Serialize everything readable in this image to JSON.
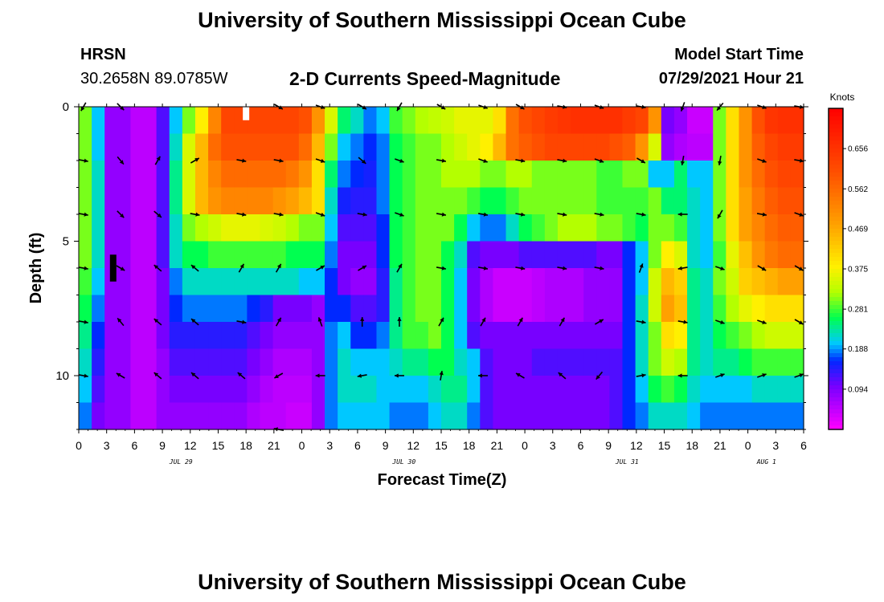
{
  "page": {
    "title_top": "University of Southern Mississippi Ocean Cube",
    "title_bottom": "University of Southern Mississippi Ocean Cube",
    "station": "HRSN",
    "coords": "30.2658N  89.0785W",
    "plot_title": "2-D Currents Speed-Magnitude",
    "model_start_label": "Model Start Time",
    "model_start_value": "07/29/2021 Hour 21"
  },
  "chart_data": {
    "type": "heatmap",
    "title": "2-D Currents Speed-Magnitude",
    "xlabel": "Forecast Time(Z)",
    "ylabel": "Depth (ft)",
    "ylim": [
      0,
      12
    ],
    "xlim_hours": [
      0,
      78
    ],
    "x_tick_labels": [
      "0",
      "3",
      "6",
      "9",
      "12",
      "15",
      "18",
      "21",
      "0",
      "3",
      "6",
      "9",
      "12",
      "15",
      "18",
      "21",
      "0",
      "3",
      "6",
      "9",
      "12",
      "15",
      "18",
      "21",
      "0",
      "3",
      "6"
    ],
    "y_ticks": [
      0,
      5,
      10
    ],
    "date_labels": [
      {
        "label": "JUL 29",
        "hour": 11
      },
      {
        "label": "JUL 30",
        "hour": 35
      },
      {
        "label": "JUL 31",
        "hour": 59
      },
      {
        "label": "AUG 1",
        "hour": 74
      }
    ],
    "colorbar": {
      "unit": "Knots",
      "min": 0.0,
      "max": 0.75,
      "tick_labels": [
        "0.656",
        "0.562",
        "0.469",
        "0.375",
        "0.281",
        "0.188",
        "0.094"
      ],
      "tick_values": [
        0.656,
        0.562,
        0.469,
        0.375,
        0.281,
        0.188,
        0.094
      ]
    },
    "rows_depth_ft": [
      0,
      1,
      2,
      3,
      4,
      5,
      6,
      7,
      8,
      9,
      10,
      11
    ],
    "row_speeds_knots": [
      [
        0.3,
        0.2,
        0.08,
        0.08,
        0.05,
        0.05,
        0.12,
        0.2,
        0.3,
        0.38,
        0.52,
        0.62,
        0.62,
        0.62,
        0.62,
        0.62,
        0.62,
        0.6,
        0.5,
        0.35,
        0.25,
        0.22,
        0.18,
        0.2,
        0.28,
        0.3,
        0.32,
        0.33,
        0.34,
        0.36,
        0.36,
        0.36,
        0.4,
        0.55,
        0.6,
        0.62,
        0.64,
        0.65,
        0.66,
        0.66,
        0.66,
        0.66,
        0.64,
        0.62,
        0.5,
        0.1,
        0.08,
        0.04,
        0.04,
        0.3,
        0.4,
        0.5,
        0.6,
        0.65,
        0.66,
        0.66
      ],
      [
        0.3,
        0.2,
        0.08,
        0.08,
        0.05,
        0.05,
        0.12,
        0.22,
        0.35,
        0.45,
        0.56,
        0.6,
        0.6,
        0.6,
        0.6,
        0.6,
        0.6,
        0.56,
        0.45,
        0.3,
        0.2,
        0.18,
        0.16,
        0.18,
        0.26,
        0.28,
        0.3,
        0.3,
        0.32,
        0.34,
        0.36,
        0.38,
        0.45,
        0.55,
        0.58,
        0.6,
        0.62,
        0.62,
        0.62,
        0.62,
        0.62,
        0.6,
        0.58,
        0.5,
        0.35,
        0.08,
        0.06,
        0.05,
        0.05,
        0.3,
        0.4,
        0.5,
        0.58,
        0.62,
        0.64,
        0.64
      ],
      [
        0.3,
        0.22,
        0.08,
        0.08,
        0.05,
        0.05,
        0.12,
        0.24,
        0.35,
        0.45,
        0.52,
        0.56,
        0.56,
        0.56,
        0.56,
        0.56,
        0.54,
        0.5,
        0.4,
        0.25,
        0.18,
        0.16,
        0.15,
        0.18,
        0.26,
        0.28,
        0.3,
        0.3,
        0.32,
        0.32,
        0.32,
        0.3,
        0.3,
        0.32,
        0.32,
        0.3,
        0.3,
        0.3,
        0.3,
        0.3,
        0.28,
        0.28,
        0.3,
        0.3,
        0.2,
        0.2,
        0.25,
        0.2,
        0.2,
        0.3,
        0.4,
        0.5,
        0.56,
        0.6,
        0.62,
        0.62
      ],
      [
        0.3,
        0.22,
        0.08,
        0.08,
        0.05,
        0.05,
        0.12,
        0.24,
        0.35,
        0.45,
        0.5,
        0.52,
        0.52,
        0.52,
        0.52,
        0.5,
        0.48,
        0.45,
        0.4,
        0.22,
        0.15,
        0.14,
        0.14,
        0.18,
        0.26,
        0.28,
        0.3,
        0.3,
        0.3,
        0.3,
        0.28,
        0.26,
        0.26,
        0.28,
        0.3,
        0.3,
        0.3,
        0.3,
        0.3,
        0.3,
        0.28,
        0.28,
        0.28,
        0.28,
        0.3,
        0.25,
        0.25,
        0.22,
        0.2,
        0.3,
        0.4,
        0.48,
        0.54,
        0.58,
        0.6,
        0.6
      ],
      [
        0.3,
        0.22,
        0.08,
        0.08,
        0.05,
        0.05,
        0.12,
        0.22,
        0.3,
        0.32,
        0.34,
        0.36,
        0.36,
        0.36,
        0.35,
        0.34,
        0.32,
        0.3,
        0.3,
        0.2,
        0.12,
        0.12,
        0.12,
        0.16,
        0.26,
        0.28,
        0.3,
        0.3,
        0.3,
        0.26,
        0.2,
        0.18,
        0.18,
        0.22,
        0.26,
        0.28,
        0.3,
        0.32,
        0.32,
        0.32,
        0.3,
        0.3,
        0.28,
        0.26,
        0.3,
        0.3,
        0.28,
        0.22,
        0.2,
        0.3,
        0.4,
        0.48,
        0.52,
        0.56,
        0.58,
        0.58
      ],
      [
        0.3,
        0.22,
        0.08,
        0.08,
        0.05,
        0.05,
        0.12,
        0.22,
        0.26,
        0.26,
        0.28,
        0.28,
        0.28,
        0.28,
        0.28,
        0.28,
        0.26,
        0.26,
        0.26,
        0.18,
        0.1,
        0.1,
        0.1,
        0.16,
        0.26,
        0.28,
        0.3,
        0.3,
        0.26,
        0.22,
        0.12,
        0.1,
        0.1,
        0.1,
        0.12,
        0.12,
        0.12,
        0.12,
        0.12,
        0.12,
        0.1,
        0.1,
        0.16,
        0.2,
        0.3,
        0.38,
        0.35,
        0.22,
        0.2,
        0.28,
        0.36,
        0.44,
        0.5,
        0.54,
        0.56,
        0.56
      ],
      [
        0.28,
        0.2,
        0.08,
        0.08,
        0.05,
        0.05,
        0.1,
        0.18,
        0.22,
        0.22,
        0.22,
        0.22,
        0.22,
        0.22,
        0.22,
        0.22,
        0.22,
        0.2,
        0.2,
        0.16,
        0.1,
        0.08,
        0.08,
        0.14,
        0.24,
        0.28,
        0.3,
        0.3,
        0.26,
        0.2,
        0.1,
        0.06,
        0.04,
        0.04,
        0.04,
        0.05,
        0.06,
        0.06,
        0.06,
        0.08,
        0.08,
        0.08,
        0.16,
        0.2,
        0.34,
        0.45,
        0.42,
        0.24,
        0.22,
        0.3,
        0.34,
        0.42,
        0.44,
        0.46,
        0.48,
        0.48
      ],
      [
        0.26,
        0.18,
        0.08,
        0.08,
        0.05,
        0.05,
        0.1,
        0.16,
        0.18,
        0.18,
        0.18,
        0.18,
        0.18,
        0.16,
        0.14,
        0.1,
        0.1,
        0.1,
        0.08,
        0.16,
        0.16,
        0.12,
        0.12,
        0.14,
        0.24,
        0.28,
        0.3,
        0.3,
        0.26,
        0.2,
        0.1,
        0.06,
        0.04,
        0.04,
        0.04,
        0.05,
        0.06,
        0.06,
        0.06,
        0.08,
        0.08,
        0.08,
        0.16,
        0.22,
        0.34,
        0.48,
        0.44,
        0.24,
        0.22,
        0.28,
        0.32,
        0.36,
        0.38,
        0.4,
        0.4,
        0.4
      ],
      [
        0.24,
        0.16,
        0.08,
        0.08,
        0.05,
        0.05,
        0.1,
        0.14,
        0.14,
        0.14,
        0.14,
        0.14,
        0.14,
        0.12,
        0.1,
        0.08,
        0.08,
        0.08,
        0.08,
        0.18,
        0.2,
        0.16,
        0.16,
        0.18,
        0.24,
        0.28,
        0.28,
        0.3,
        0.26,
        0.2,
        0.12,
        0.1,
        0.1,
        0.1,
        0.1,
        0.1,
        0.1,
        0.1,
        0.1,
        0.1,
        0.1,
        0.1,
        0.16,
        0.22,
        0.3,
        0.4,
        0.38,
        0.24,
        0.22,
        0.26,
        0.28,
        0.3,
        0.32,
        0.34,
        0.34,
        0.34
      ],
      [
        0.22,
        0.14,
        0.08,
        0.08,
        0.05,
        0.05,
        0.08,
        0.12,
        0.12,
        0.12,
        0.12,
        0.12,
        0.12,
        0.1,
        0.08,
        0.06,
        0.06,
        0.06,
        0.08,
        0.18,
        0.22,
        0.2,
        0.2,
        0.2,
        0.22,
        0.24,
        0.24,
        0.26,
        0.26,
        0.22,
        0.2,
        0.12,
        0.1,
        0.1,
        0.1,
        0.12,
        0.12,
        0.12,
        0.12,
        0.12,
        0.12,
        0.12,
        0.16,
        0.22,
        0.3,
        0.34,
        0.32,
        0.24,
        0.22,
        0.24,
        0.24,
        0.26,
        0.28,
        0.28,
        0.28,
        0.28
      ],
      [
        0.2,
        0.12,
        0.08,
        0.08,
        0.05,
        0.05,
        0.08,
        0.1,
        0.1,
        0.1,
        0.1,
        0.1,
        0.1,
        0.08,
        0.06,
        0.05,
        0.05,
        0.05,
        0.08,
        0.18,
        0.22,
        0.22,
        0.22,
        0.2,
        0.2,
        0.2,
        0.2,
        0.22,
        0.24,
        0.24,
        0.2,
        0.12,
        0.1,
        0.1,
        0.1,
        0.1,
        0.1,
        0.1,
        0.1,
        0.1,
        0.1,
        0.12,
        0.16,
        0.2,
        0.26,
        0.28,
        0.26,
        0.22,
        0.2,
        0.2,
        0.2,
        0.2,
        0.22,
        0.22,
        0.22,
        0.22
      ],
      [
        0.18,
        0.1,
        0.08,
        0.08,
        0.05,
        0.05,
        0.08,
        0.08,
        0.08,
        0.08,
        0.08,
        0.08,
        0.08,
        0.06,
        0.05,
        0.05,
        0.04,
        0.04,
        0.08,
        0.18,
        0.2,
        0.2,
        0.2,
        0.2,
        0.18,
        0.18,
        0.18,
        0.2,
        0.22,
        0.22,
        0.18,
        0.12,
        0.1,
        0.1,
        0.1,
        0.1,
        0.1,
        0.1,
        0.1,
        0.1,
        0.1,
        0.12,
        0.16,
        0.18,
        0.22,
        0.22,
        0.22,
        0.2,
        0.18,
        0.18,
        0.18,
        0.18,
        0.18,
        0.18,
        0.18,
        0.18
      ]
    ],
    "vector_rows_depth_ft": [
      0,
      2,
      4,
      6,
      8,
      10
    ],
    "vector_times_hours": [
      0.5,
      4.5,
      8.5,
      12.5,
      17.5,
      21.5,
      26,
      30.5,
      34.5,
      39,
      43.5,
      47.5,
      52,
      56,
      60.5,
      65,
      69,
      73.5,
      77.5
    ],
    "vector_directions_deg": [
      [
        120,
        45,
        null,
        null,
        null,
        30,
        20,
        30,
        120,
        30,
        20,
        30,
        10,
        20,
        10,
        110,
        130,
        20,
        10
      ],
      [
        10,
        50,
        300,
        330,
        10,
        10,
        20,
        40,
        20,
        10,
        20,
        10,
        10,
        20,
        30,
        100,
        100,
        20,
        10
      ],
      [
        10,
        45,
        40,
        10,
        10,
        10,
        20,
        10,
        20,
        10,
        10,
        10,
        10,
        10,
        10,
        180,
        120,
        10,
        20
      ],
      [
        10,
        30,
        220,
        220,
        300,
        300,
        330,
        330,
        300,
        10,
        10,
        10,
        10,
        10,
        290,
        170,
        20,
        30,
        30
      ],
      [
        10,
        230,
        220,
        220,
        10,
        300,
        250,
        270,
        270,
        300,
        300,
        300,
        300,
        330,
        10,
        10,
        20,
        20,
        30
      ],
      [
        10,
        210,
        220,
        220,
        220,
        150,
        180,
        170,
        180,
        280,
        180,
        210,
        220,
        130,
        350,
        180,
        340,
        340,
        340
      ]
    ],
    "extra_vector": {
      "depth_ft": 12,
      "hour": 21.5,
      "direction_deg": 190
    },
    "markers": [
      {
        "hour": 18,
        "depth_from": 0,
        "depth_to": 0.5,
        "color": "#ffffff"
      },
      {
        "hour": 3.7,
        "depth_from": 5.5,
        "depth_to": 6.5,
        "color": "#000000"
      }
    ]
  }
}
